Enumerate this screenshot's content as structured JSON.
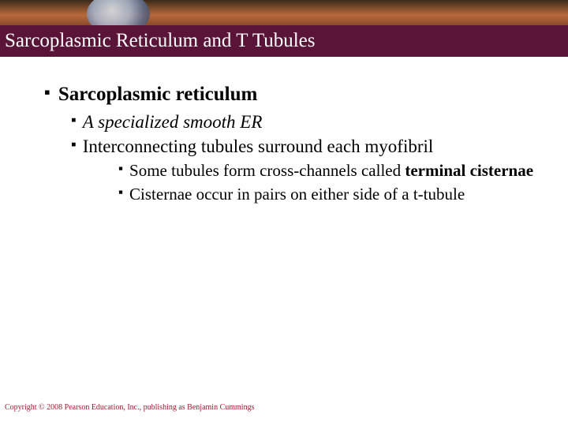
{
  "colors": {
    "title_bar_bg": "#5a1438",
    "title_text": "#ffffff",
    "body_bg": "#ffffff",
    "bullet": "#000000",
    "copyright": "#a01830"
  },
  "typography": {
    "family": "Times New Roman",
    "title_size_pt": 25,
    "lvl1_size_pt": 25,
    "lvl2_size_pt": 23,
    "lvl3_size_pt": 21,
    "copyright_size_pt": 10
  },
  "title": "Sarcoplasmic Reticulum and T Tubules",
  "bullets": {
    "lvl1": {
      "text": "Sarcoplasmic reticulum",
      "bold": true
    },
    "lvl2": [
      {
        "text": "A specialized smooth ER",
        "italic": true
      },
      {
        "text": "Interconnecting tubules surround each myofibril",
        "italic": false
      }
    ],
    "lvl3": [
      {
        "pre": "Some tubules form cross-channels called ",
        "bold": "terminal cisternae",
        "post": ""
      },
      {
        "pre": "Cisternae occur in pairs on either side of a t-tubule",
        "bold": "",
        "post": ""
      }
    ]
  },
  "copyright": "Copyright © 2008 Pearson Education, Inc., publishing as Benjamin Cummings"
}
